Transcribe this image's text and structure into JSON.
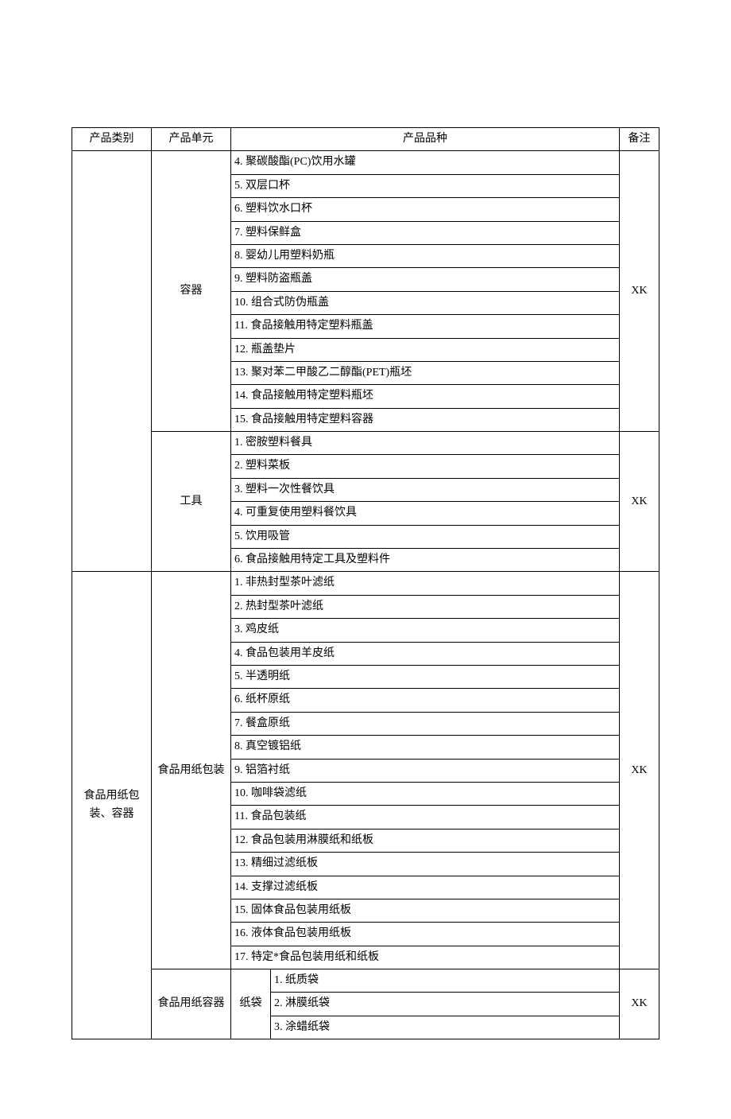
{
  "headers": {
    "category": "产品类别",
    "unit": "产品单元",
    "variety": "产品品种",
    "note": "备注"
  },
  "sections": [
    {
      "category": "",
      "groups": [
        {
          "unit": "容器",
          "note": "XK",
          "items": [
            "4. 聚碳酸酯(PC)饮用水罐",
            "5. 双层口杯",
            "6. 塑料饮水口杯",
            "7. 塑料保鲜盒",
            "8. 婴幼儿用塑料奶瓶",
            "9. 塑料防盗瓶盖",
            "10. 组合式防伪瓶盖",
            "11. 食品接触用特定塑料瓶盖",
            "12. 瓶盖垫片",
            "13. 聚对苯二甲酸乙二醇酯(PET)瓶坯",
            "14. 食品接触用特定塑料瓶坯",
            "15. 食品接触用特定塑料容器"
          ]
        },
        {
          "unit": "工具",
          "note": "XK",
          "items": [
            "1. 密胺塑料餐具",
            "2. 塑料菜板",
            "3. 塑料一次性餐饮具",
            "4. 可重复使用塑料餐饮具",
            "5. 饮用吸管",
            "6. 食品接触用特定工具及塑料件"
          ]
        }
      ]
    },
    {
      "category": "食品用纸包装、容器",
      "groups": [
        {
          "unit": "食品用纸包装",
          "note": "XK",
          "items": [
            "1. 非热封型茶叶滤纸",
            "2. 热封型茶叶滤纸",
            "3. 鸡皮纸",
            "4. 食品包装用羊皮纸",
            "5. 半透明纸",
            "6. 纸杯原纸",
            "7. 餐盒原纸",
            "8. 真空镀铝纸",
            "9. 铝箔衬纸",
            "10. 咖啡袋滤纸",
            "11. 食品包装纸",
            "12. 食品包装用淋膜纸和纸板",
            "13. 精细过滤纸板",
            "14. 支撑过滤纸板",
            "15. 固体食品包装用纸板",
            "16. 液体食品包装用纸板",
            "17. 特定*食品包装用纸和纸板"
          ]
        },
        {
          "unit": "食品用纸容器",
          "note": "XK",
          "sublabel": "纸袋",
          "items": [
            "1. 纸质袋",
            "2. 淋膜纸袋",
            "3. 涂蜡纸袋"
          ]
        }
      ]
    }
  ]
}
